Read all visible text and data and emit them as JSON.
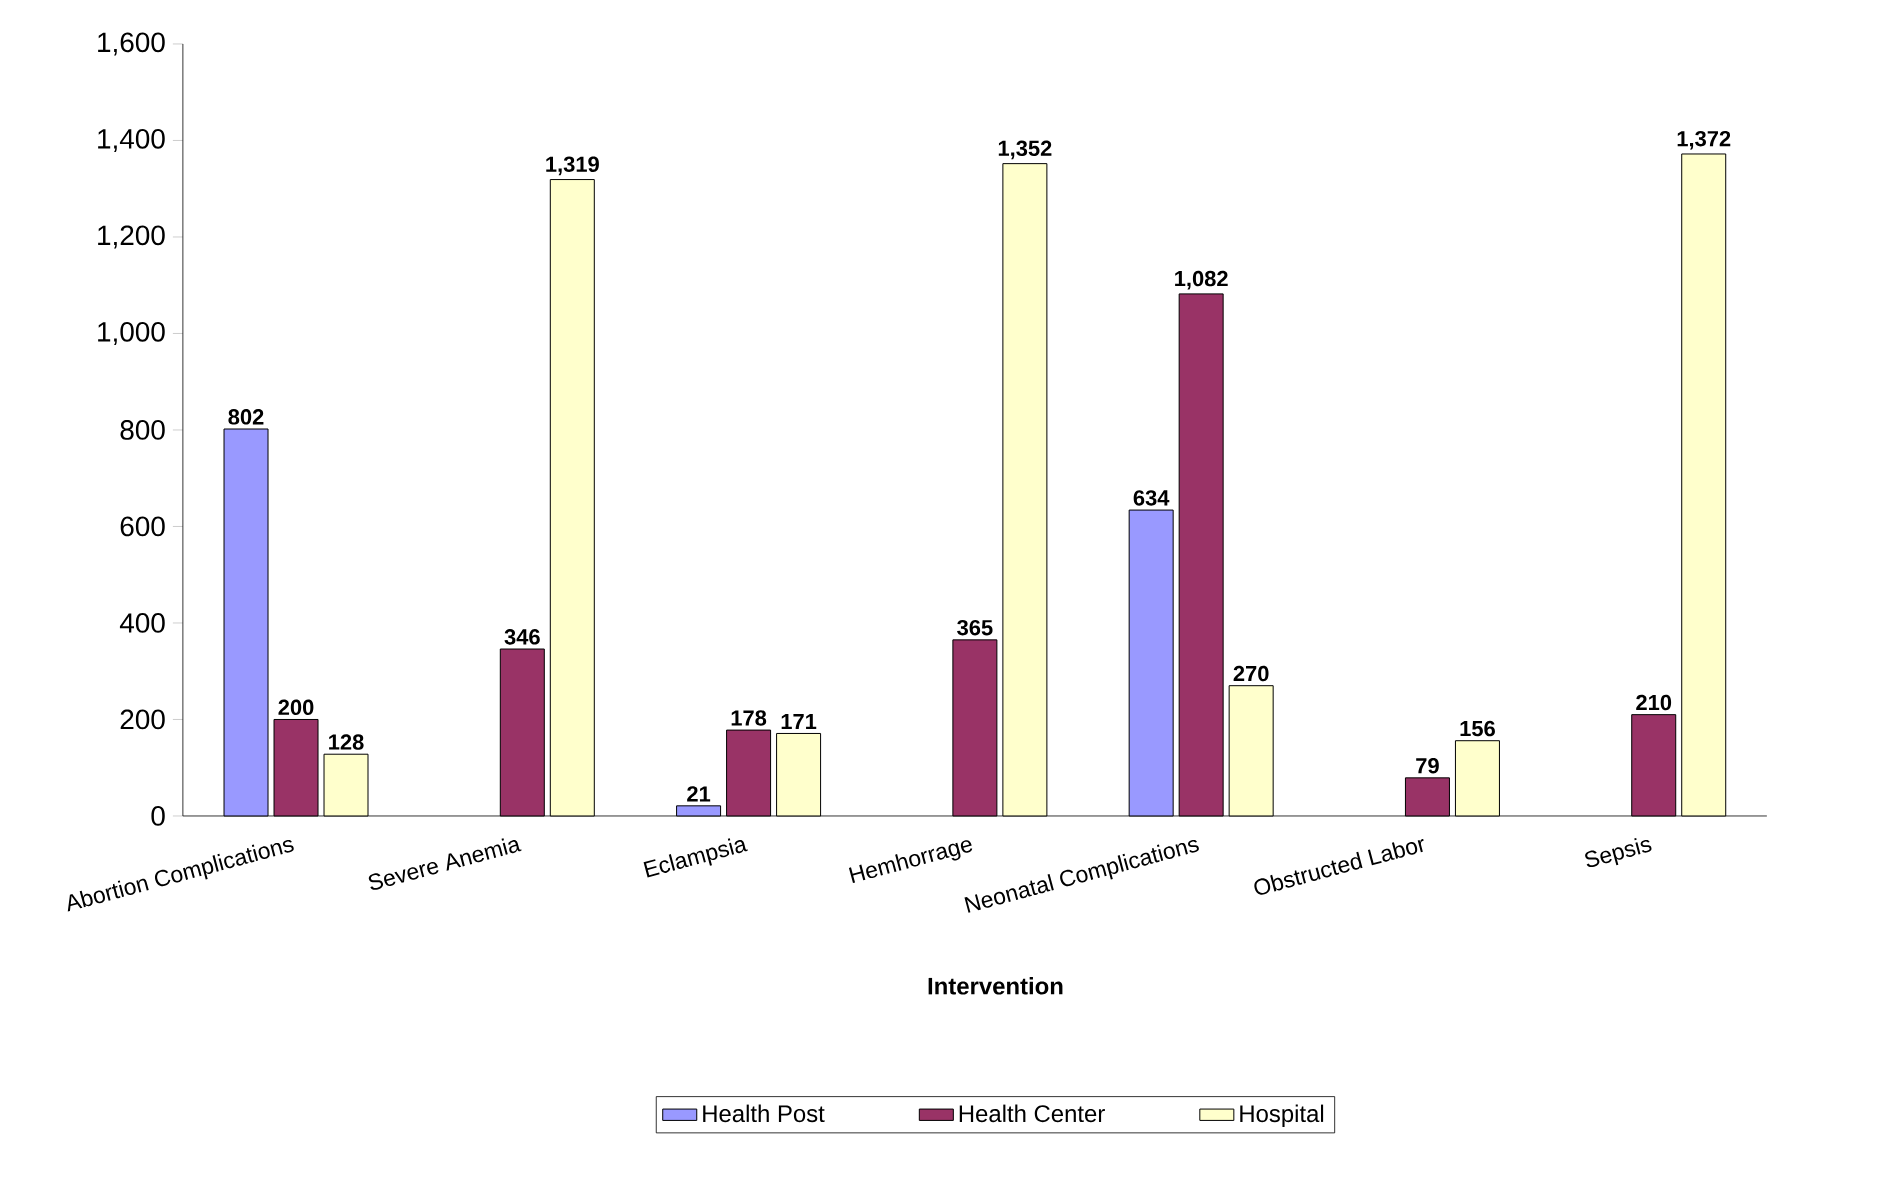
{
  "chart_data": {
    "type": "bar",
    "categories": [
      "Abortion Complications",
      "Severe Anemia",
      "Eclampsia",
      "Hemhorrage",
      "Neonatal Complications",
      "Obstructed Labor",
      "Sepsis"
    ],
    "series": [
      {
        "name": "Health Post",
        "color": "#9999ff",
        "values": [
          802,
          null,
          21,
          null,
          634,
          null,
          null
        ],
        "value_labels": [
          "802",
          null,
          "21",
          null,
          "634",
          null,
          null
        ]
      },
      {
        "name": "Health Center",
        "color": "#993366",
        "values": [
          200,
          346,
          178,
          365,
          1082,
          79,
          210
        ],
        "value_labels": [
          "200",
          "346",
          "178",
          "365",
          "1,082",
          "79",
          "210"
        ]
      },
      {
        "name": "Hospital",
        "color": "#ffffcc",
        "values": [
          128,
          1319,
          171,
          1352,
          270,
          156,
          1372
        ],
        "value_labels": [
          "128",
          "1,319",
          "171",
          "1,352",
          "270",
          "156",
          "1,372"
        ]
      }
    ],
    "ylim": [
      0,
      1600
    ],
    "yticks": [
      0,
      200,
      400,
      600,
      800,
      {
        "value": 1000,
        "label": "1,000"
      },
      {
        "value": 1200,
        "label": "1,200"
      },
      {
        "value": 1400,
        "label": "1,400"
      },
      {
        "value": 1600,
        "label": "1,600"
      }
    ],
    "xlabel": "Intervention",
    "legend": "bottom"
  }
}
